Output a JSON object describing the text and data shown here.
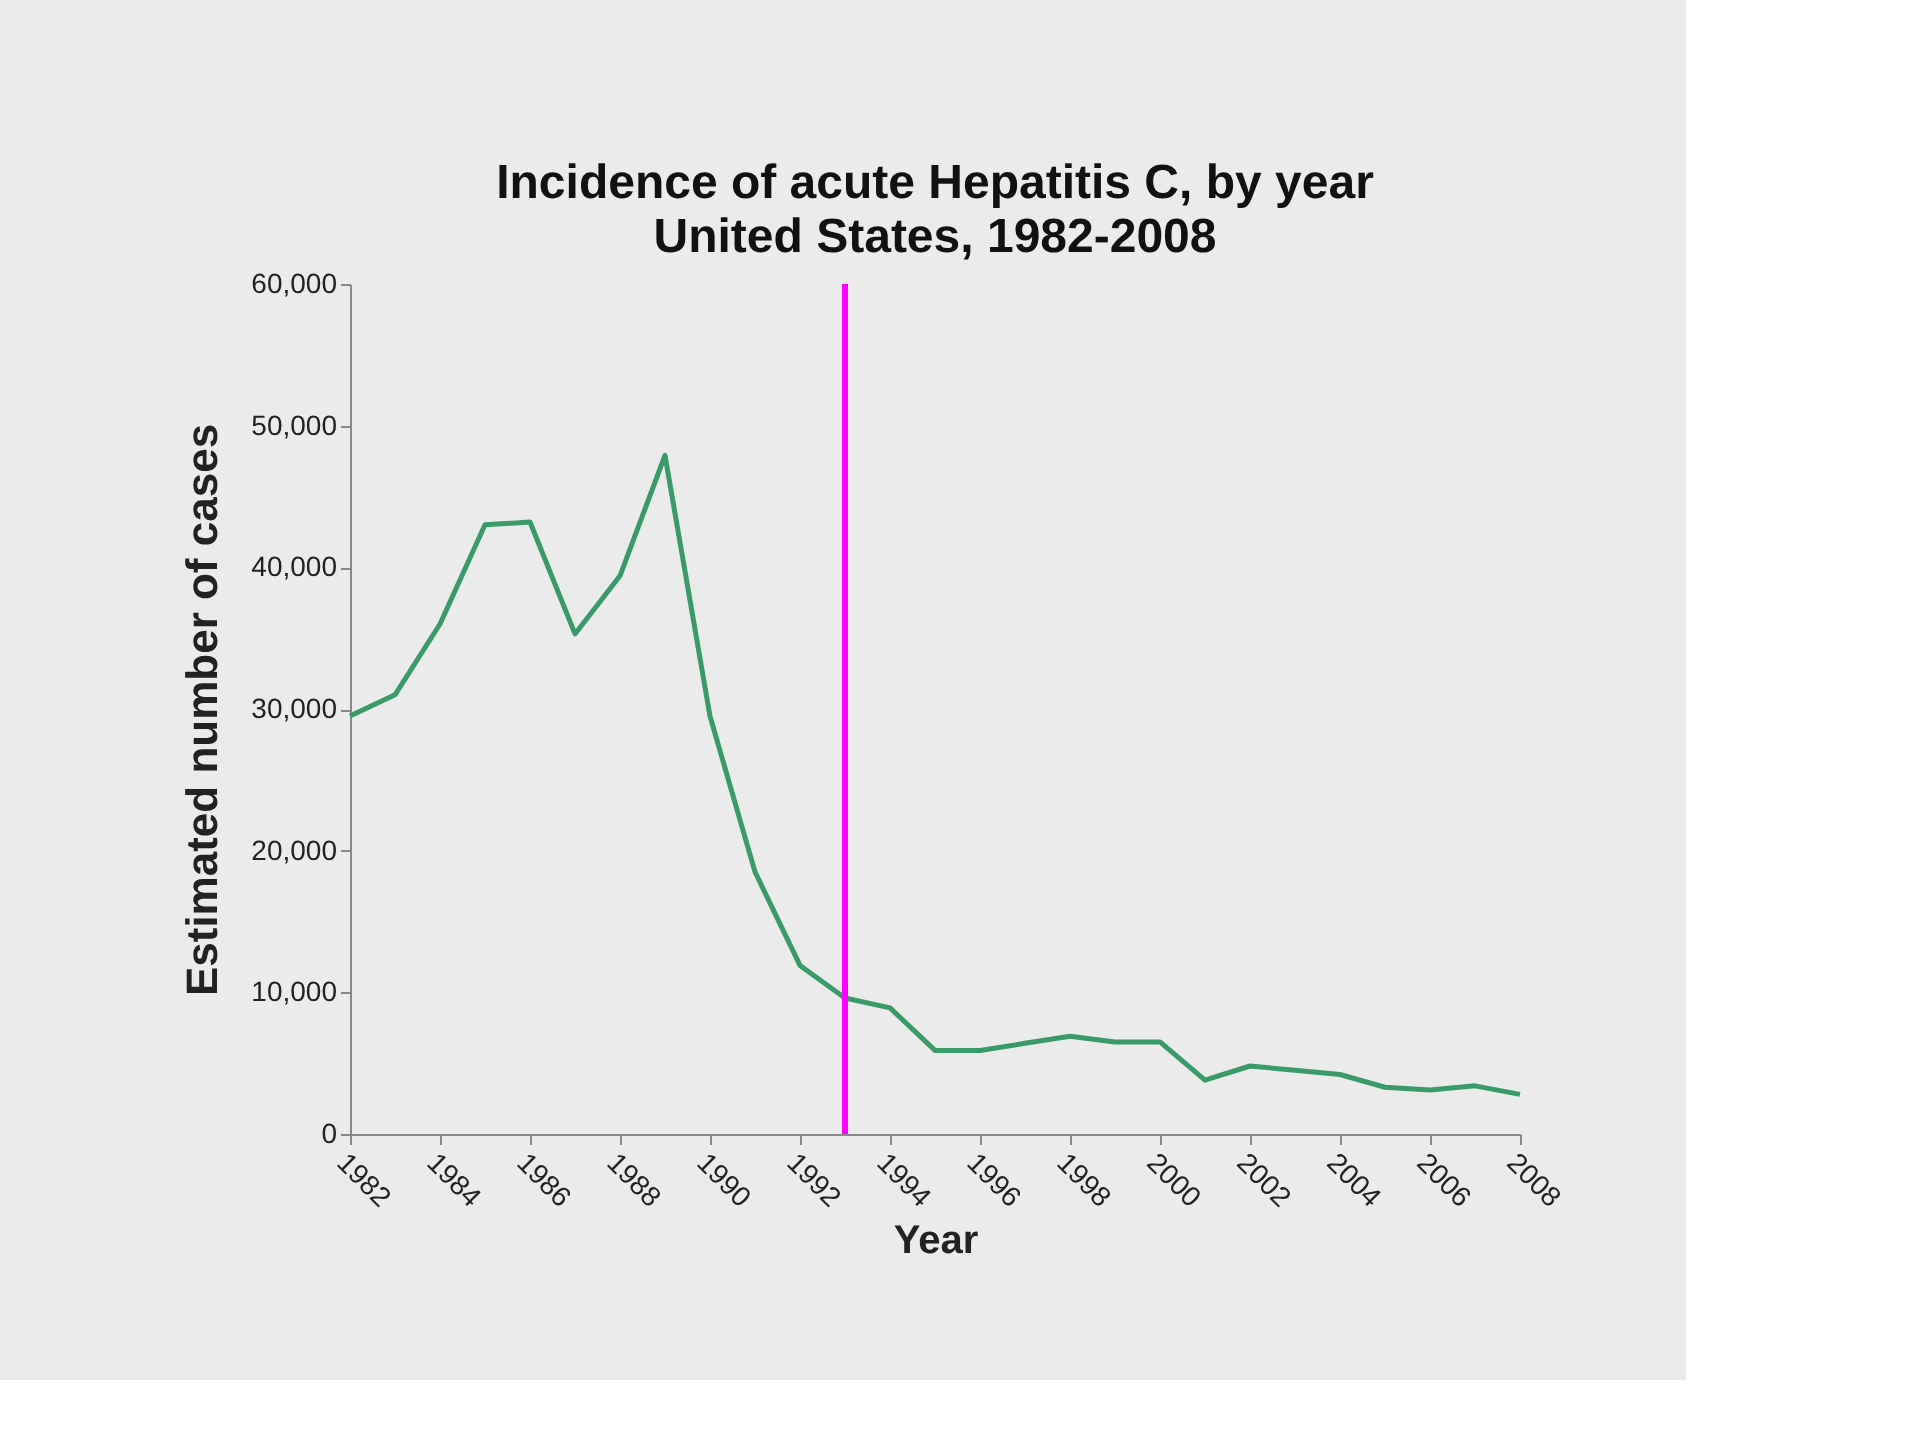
{
  "chart_data": {
    "type": "line",
    "title": "Incidence of acute Hepatitis C, by year",
    "subtitle": "United States, 1982-2008",
    "xlabel": "Year",
    "ylabel": "Estimated number of cases",
    "x": [
      1982,
      1983,
      1984,
      1985,
      1986,
      1987,
      1988,
      1989,
      1990,
      1991,
      1992,
      1993,
      1994,
      1995,
      1996,
      1997,
      1998,
      1999,
      2000,
      2001,
      2002,
      2003,
      2004,
      2005,
      2006,
      2007,
      2008
    ],
    "series": [
      {
        "color": "#3a9a6a",
        "values": [
          29500,
          31000,
          36000,
          43000,
          43200,
          35300,
          39400,
          47900,
          29500,
          18500,
          11900,
          9600,
          8900,
          5900,
          5900,
          6400,
          6900,
          6500,
          6500,
          3800,
          4800,
          4500,
          4200,
          3300,
          3100,
          3400,
          2800
        ]
      }
    ],
    "xlim": [
      1982,
      2008
    ],
    "xticks": [
      1982,
      1984,
      1986,
      1988,
      1990,
      1992,
      1994,
      1996,
      1998,
      2000,
      2002,
      2004,
      2006,
      2008
    ],
    "ylim": [
      0,
      60000
    ],
    "yticks": [
      0,
      {
        "value": 10000,
        "label": "10,000"
      },
      {
        "value": 20000,
        "label": "20,000"
      },
      {
        "value": 30000,
        "label": "30,000"
      },
      {
        "value": 40000,
        "label": "40,000"
      },
      {
        "value": 50000,
        "label": "50,000"
      },
      {
        "value": 60000,
        "label": "60,000"
      }
    ],
    "ref_lines": [
      {
        "axis": "x",
        "value": 1993,
        "color": "#ff00ff"
      }
    ],
    "grid": false,
    "marker": "none",
    "line_style": "solid"
  }
}
